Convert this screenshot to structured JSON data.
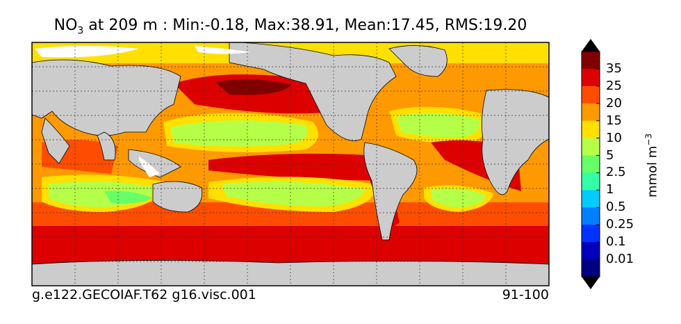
{
  "title": {
    "species_main": "NO",
    "species_sub": "3",
    "rest": " at 209 m : Min:-0.18, Max:38.91, Mean:17.45, RMS:19.20"
  },
  "footer": {
    "case_name": "g.e122.GECOIAF.T62 g16.visc.001",
    "years": "91-100"
  },
  "colorbar": {
    "units_main": "mmol m",
    "units_sup": "−3",
    "levels": [
      "35",
      "25",
      "20",
      "15",
      "10",
      "5",
      "2.5",
      "1",
      "0.5",
      "0.25",
      "0.1",
      "0.01"
    ],
    "colors": [
      "#800000",
      "#dd0000",
      "#ff4d00",
      "#ff9900",
      "#ffe000",
      "#b6ff49",
      "#66ff66",
      "#33ffa8",
      "#00ccff",
      "#0080ff",
      "#0033ff",
      "#0000bb",
      "#000080"
    ],
    "top_arrow_color": "#000000",
    "bottom_arrow_color": "#000000"
  },
  "map": {
    "land_color": "#cccccc",
    "no_data_color": "#ffffff",
    "grid": true
  }
}
